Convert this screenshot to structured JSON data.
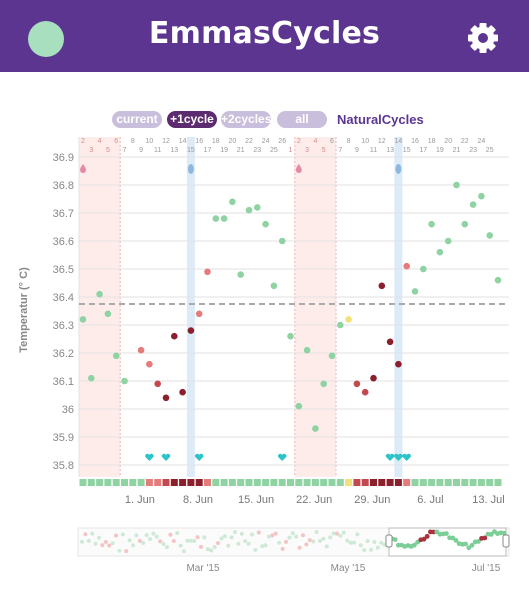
{
  "app": {
    "title": "EmmasCycles",
    "avatar_color": "#a7dfbf",
    "settings_icon": "gear-icon",
    "header_color": "#5c3591"
  },
  "toolbar": {
    "buttons": [
      {
        "label": "current",
        "active": false
      },
      {
        "label": "+1cycle",
        "active": true
      },
      {
        "label": "+2cycles",
        "active": false
      },
      {
        "label": "all",
        "active": false
      }
    ],
    "brand_link": "NaturalCycles"
  },
  "chart_data": {
    "type": "scatter",
    "title": "",
    "ylabel": "Temperatur (° C)",
    "ylim": [
      35.75,
      36.95
    ],
    "yticks": [
      "36.9",
      "36.8",
      "36.7",
      "36.6",
      "36.5",
      "36.4",
      "36.3",
      "36.2",
      "36.1",
      "36",
      "35.9",
      "35.8"
    ],
    "coverline": 36.375,
    "cycle_day_labels": [
      "2",
      "3",
      "4",
      "5",
      "6",
      "7",
      "8",
      "9",
      "10",
      "11",
      "12",
      "13",
      "14",
      "15",
      "16",
      "17",
      "18",
      "19",
      "20",
      "21",
      "22",
      "23",
      "24",
      "25",
      "26",
      "1",
      "2",
      "3",
      "4",
      "5",
      "6",
      "7",
      "8",
      "9",
      "10",
      "11",
      "12",
      "13",
      "14",
      "15",
      "16",
      "17",
      "18",
      "19",
      "20",
      "21",
      "22",
      "23",
      "24",
      "25"
    ],
    "date_labels": [
      "1. Jun",
      "8. Jun",
      "15. Jun",
      "22. Jun",
      "29. Jun",
      "6. Jul",
      "13. Jul"
    ],
    "date_label_days": [
      3,
      10,
      17,
      24,
      31,
      38,
      45
    ],
    "period_ranges": [
      [
        0,
        4
      ],
      [
        26,
        30
      ]
    ],
    "ovulation_days": [
      13,
      38
    ],
    "drop_icon_days": [
      0,
      26
    ],
    "heart_days": [
      8,
      10,
      14,
      24,
      37,
      38,
      39
    ],
    "colors": {
      "green": "#8fd3a3",
      "red_light": "#e57c7c",
      "red_dark": "#8b1f2c",
      "yellow": "#f2e07a"
    },
    "points": [
      {
        "day": 0,
        "temp": 36.32,
        "color": "green"
      },
      {
        "day": 1,
        "temp": 36.11,
        "color": "green"
      },
      {
        "day": 2,
        "temp": 36.41,
        "color": "green"
      },
      {
        "day": 3,
        "temp": 36.34,
        "color": "green"
      },
      {
        "day": 4,
        "temp": 36.19,
        "color": "green"
      },
      {
        "day": 5,
        "temp": 36.1,
        "color": "green"
      },
      {
        "day": 7,
        "temp": 36.21,
        "color": "red_light"
      },
      {
        "day": 8,
        "temp": 36.16,
        "color": "red_light"
      },
      {
        "day": 9,
        "temp": 36.09,
        "color": "red_mid"
      },
      {
        "day": 10,
        "temp": 36.04,
        "color": "red_dark"
      },
      {
        "day": 11,
        "temp": 36.26,
        "color": "red_dark"
      },
      {
        "day": 12,
        "temp": 36.06,
        "color": "red_dark"
      },
      {
        "day": 13,
        "temp": 36.28,
        "color": "red_dark"
      },
      {
        "day": 14,
        "temp": 36.34,
        "color": "red_light"
      },
      {
        "day": 15,
        "temp": 36.49,
        "color": "red_light"
      },
      {
        "day": 16,
        "temp": 36.68,
        "color": "green"
      },
      {
        "day": 17,
        "temp": 36.68,
        "color": "green"
      },
      {
        "day": 18,
        "temp": 36.74,
        "color": "green"
      },
      {
        "day": 19,
        "temp": 36.48,
        "color": "green"
      },
      {
        "day": 20,
        "temp": 36.71,
        "color": "green"
      },
      {
        "day": 21,
        "temp": 36.72,
        "color": "green"
      },
      {
        "day": 22,
        "temp": 36.66,
        "color": "green"
      },
      {
        "day": 23,
        "temp": 36.44,
        "color": "green"
      },
      {
        "day": 24,
        "temp": 36.6,
        "color": "green"
      },
      {
        "day": 25,
        "temp": 36.26,
        "color": "green"
      },
      {
        "day": 26,
        "temp": 36.01,
        "color": "green"
      },
      {
        "day": 27,
        "temp": 36.21,
        "color": "green"
      },
      {
        "day": 28,
        "temp": 35.93,
        "color": "green"
      },
      {
        "day": 29,
        "temp": 36.09,
        "color": "green"
      },
      {
        "day": 30,
        "temp": 36.19,
        "color": "green"
      },
      {
        "day": 31,
        "temp": 36.3,
        "color": "green"
      },
      {
        "day": 32,
        "temp": 36.32,
        "color": "yellow"
      },
      {
        "day": 33,
        "temp": 36.09,
        "color": "red_mid"
      },
      {
        "day": 34,
        "temp": 36.06,
        "color": "red_mid"
      },
      {
        "day": 35,
        "temp": 36.11,
        "color": "red_dark"
      },
      {
        "day": 36,
        "temp": 36.44,
        "color": "red_dark"
      },
      {
        "day": 37,
        "temp": 36.24,
        "color": "red_dark"
      },
      {
        "day": 38,
        "temp": 36.16,
        "color": "red_dark"
      },
      {
        "day": 39,
        "temp": 36.51,
        "color": "red_light"
      },
      {
        "day": 40,
        "temp": 36.42,
        "color": "green"
      },
      {
        "day": 41,
        "temp": 36.5,
        "color": "green"
      },
      {
        "day": 42,
        "temp": 36.66,
        "color": "green"
      },
      {
        "day": 43,
        "temp": 36.56,
        "color": "green"
      },
      {
        "day": 44,
        "temp": 36.6,
        "color": "green"
      },
      {
        "day": 45,
        "temp": 36.8,
        "color": "green"
      },
      {
        "day": 46,
        "temp": 36.66,
        "color": "green"
      },
      {
        "day": 47,
        "temp": 36.73,
        "color": "green"
      },
      {
        "day": 48,
        "temp": 36.76,
        "color": "green"
      },
      {
        "day": 49,
        "temp": 36.62,
        "color": "green"
      },
      {
        "day": 50,
        "temp": 36.46,
        "color": "green"
      }
    ],
    "strip_colors": [
      "green",
      "green",
      "green",
      "green",
      "green",
      "green",
      "green",
      "green",
      "red_light",
      "red_light",
      "red_mid",
      "red_dark",
      "red_dark",
      "red_dark",
      "red_dark",
      "red_light",
      "green",
      "green",
      "green",
      "green",
      "green",
      "green",
      "green",
      "green",
      "green",
      "green",
      "green",
      "green",
      "green",
      "green",
      "green",
      "green",
      "yellow",
      "red_mid",
      "red_mid",
      "red_dark",
      "red_dark",
      "red_dark",
      "red_dark",
      "red_light",
      "green",
      "green",
      "green",
      "green",
      "green",
      "green",
      "green",
      "green",
      "green",
      "green",
      "green"
    ]
  },
  "overview": {
    "month_labels": [
      "Mar '15",
      "May '15",
      "Jul '15"
    ],
    "selection_handle_icon": "drag-handle-icon"
  }
}
